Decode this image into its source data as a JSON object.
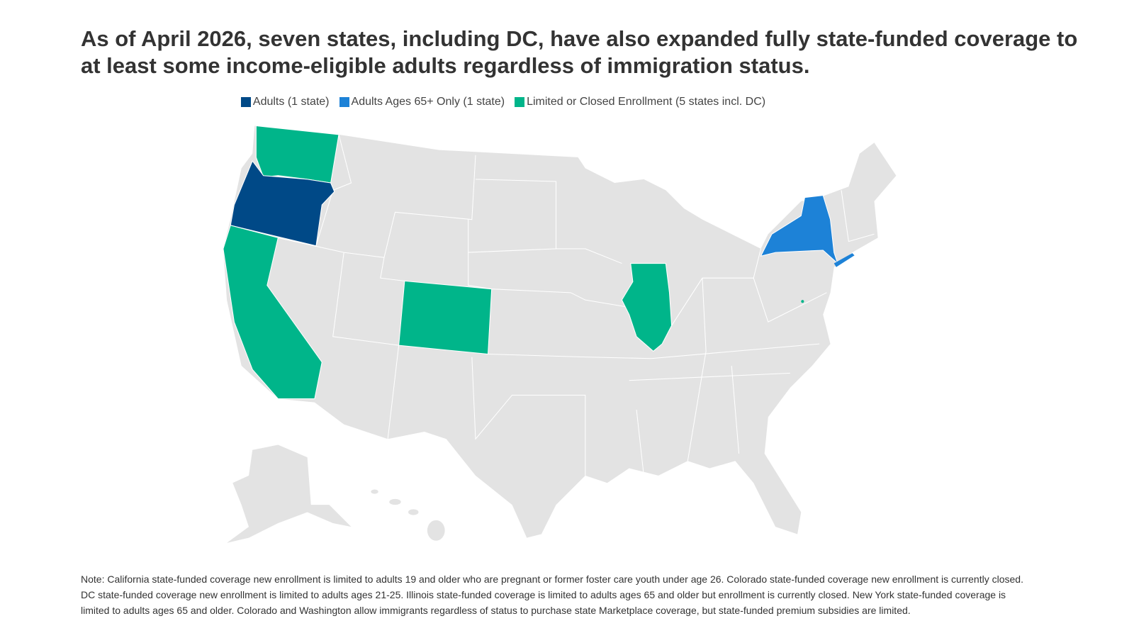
{
  "title": "As of April 2026, seven states, including DC, have also expanded fully state-funded coverage to at least some income-eligible adults regardless of immigration status.",
  "legend": [
    {
      "label": "Adults (1 state)",
      "color": "#004987"
    },
    {
      "label": "Adults Ages 65+ Only (1 state)",
      "color": "#1d82d7"
    },
    {
      "label": "Limited or Closed Enrollment (5 states incl. DC)",
      "color": "#00b58a"
    }
  ],
  "note": "Note: California state-funded coverage new enrollment is limited to adults 19 and older who are pregnant or former foster care youth under age 26. Colorado state-funded coverage new enrollment is currently closed. DC state-funded coverage new enrollment is limited to adults ages 21-25. Illinois state-funded coverage is limited to adults ages 65 and older but enrollment is currently closed. New York state-funded coverage is limited to adults ages 65 and older. Colorado and Washington allow immigrants regardless of status to purchase state Marketplace coverage, but state-funded premium subsidies are limited."
}
